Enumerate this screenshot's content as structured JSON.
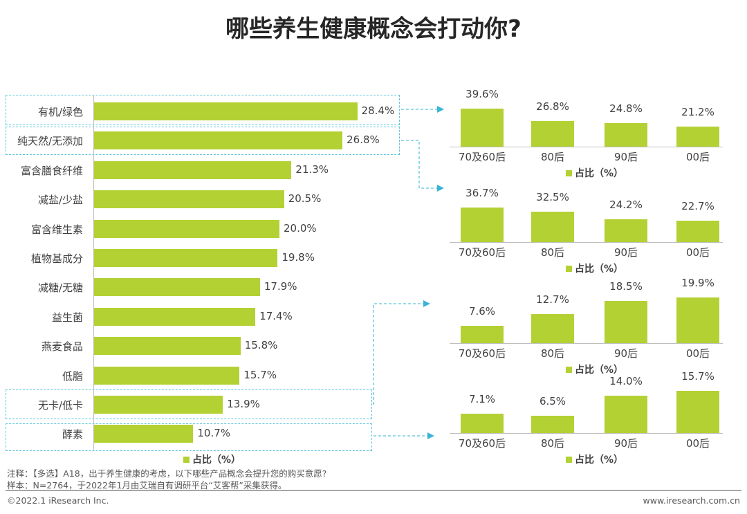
{
  "title": "哪些养生健康概念会打动你?",
  "colors": {
    "bar": "#b3d133",
    "connector": "#5bc4dc"
  },
  "chart_data": [
    {
      "type": "bar",
      "orientation": "horizontal",
      "categories": [
        "有机/绿色",
        "纯天然/无添加",
        "富含膳食纤维",
        "减盐/少盐",
        "富含维生素",
        "植物基成分",
        "减糖/无糖",
        "益生菌",
        "燕麦食品",
        "低脂",
        "无卡/低卡",
        "酵素"
      ],
      "series": [
        {
          "name": "占比（%）",
          "values": [
            28.4,
            26.8,
            21.3,
            20.5,
            20.0,
            19.8,
            17.9,
            17.4,
            15.8,
            15.7,
            13.9,
            10.7
          ]
        }
      ],
      "labels": [
        "28.4%",
        "26.8%",
        "21.3%",
        "20.5%",
        "20.0%",
        "19.8%",
        "17.9%",
        "17.4%",
        "15.8%",
        "15.7%",
        "13.9%",
        "10.7%"
      ],
      "legend": "占比（%）",
      "legend_position": "bottom",
      "highlighted": [
        "有机/绿色",
        "纯天然/无添加",
        "无卡/低卡",
        "酵素"
      ]
    },
    {
      "type": "bar",
      "source": "有机/绿色",
      "categories": [
        "70及60后",
        "80后",
        "90后",
        "00后"
      ],
      "series": [
        {
          "name": "占比（%）",
          "values": [
            39.6,
            26.8,
            24.8,
            21.2
          ]
        }
      ],
      "labels": [
        "39.6%",
        "26.8%",
        "24.8%",
        "21.2%"
      ],
      "legend": "占比（%）"
    },
    {
      "type": "bar",
      "source": "纯天然/无添加",
      "categories": [
        "70及60后",
        "80后",
        "90后",
        "00后"
      ],
      "series": [
        {
          "name": "占比（%）",
          "values": [
            36.7,
            32.5,
            24.2,
            22.7
          ]
        }
      ],
      "labels": [
        "36.7%",
        "32.5%",
        "24.2%",
        "22.7%"
      ],
      "legend": "占比（%）"
    },
    {
      "type": "bar",
      "source": "无卡/低卡",
      "categories": [
        "70及60后",
        "80后",
        "90后",
        "00后"
      ],
      "series": [
        {
          "name": "占比（%）",
          "values": [
            7.6,
            12.7,
            18.5,
            19.9
          ]
        }
      ],
      "labels": [
        "7.6%",
        "12.7%",
        "18.5%",
        "19.9%"
      ],
      "legend": "占比（%）"
    },
    {
      "type": "bar",
      "source": "酵素",
      "categories": [
        "70及60后",
        "80后",
        "90后",
        "00后"
      ],
      "series": [
        {
          "name": "占比（%）",
          "values": [
            7.1,
            6.5,
            14.0,
            15.7
          ]
        }
      ],
      "labels": [
        "7.1%",
        "6.5%",
        "14.0%",
        "15.7%"
      ],
      "legend": "占比（%）"
    }
  ],
  "notes": {
    "note": "注释：【多选】A18，出于养生健康的考虑，以下哪些产品概念会提升您的购买意愿?",
    "sample": "样本：N=2764，于2022年1月由艾瑞自有调研平台“艾客帮”采集获得。"
  },
  "footer": {
    "copyright": "©2022.1 iResearch Inc.",
    "url": "www.iresearch.com.cn"
  }
}
